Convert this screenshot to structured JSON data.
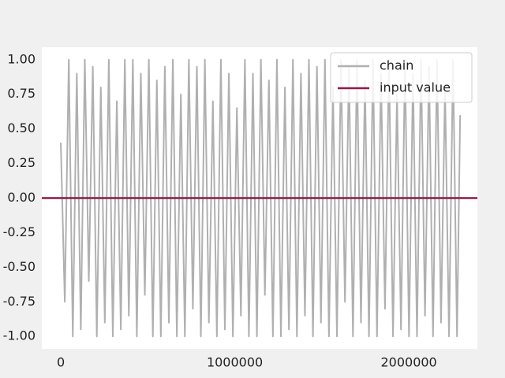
{
  "chart_data": {
    "type": "line",
    "x": [
      0,
      23000,
      46000,
      69000,
      92000,
      115000,
      138000,
      161000,
      184000,
      207000,
      230000,
      253000,
      276000,
      299000,
      322000,
      345000,
      368000,
      391000,
      414000,
      437000,
      460000,
      483000,
      506000,
      529000,
      552000,
      575000,
      598000,
      621000,
      644000,
      667000,
      690000,
      713000,
      736000,
      759000,
      782000,
      805000,
      828000,
      851000,
      874000,
      897000,
      920000,
      943000,
      966000,
      989000,
      1012000,
      1035000,
      1058000,
      1081000,
      1104000,
      1127000,
      1150000,
      1173000,
      1196000,
      1219000,
      1242000,
      1265000,
      1288000,
      1311000,
      1334000,
      1357000,
      1380000,
      1403000,
      1426000,
      1449000,
      1472000,
      1495000,
      1518000,
      1541000,
      1564000,
      1587000,
      1610000,
      1633000,
      1656000,
      1679000,
      1702000,
      1725000,
      1748000,
      1771000,
      1794000,
      1817000,
      1840000,
      1863000,
      1886000,
      1909000,
      1932000,
      1955000,
      1978000,
      2001000,
      2024000,
      2047000,
      2070000,
      2093000,
      2116000,
      2139000,
      2162000,
      2185000,
      2208000,
      2231000,
      2254000,
      2277000,
      2295000
    ],
    "series": [
      {
        "name": "chain",
        "color": "#b0b0b0",
        "values": [
          0.4,
          -0.75,
          1.0,
          -1.0,
          0.9,
          -0.95,
          1.0,
          -0.6,
          0.95,
          -1.0,
          0.8,
          -0.9,
          1.0,
          -1.0,
          0.7,
          -0.95,
          1.0,
          -0.85,
          1.0,
          -1.0,
          0.9,
          -0.7,
          1.0,
          -1.0,
          0.85,
          -1.0,
          0.95,
          -0.9,
          1.0,
          -1.0,
          0.75,
          -1.0,
          1.0,
          -0.8,
          0.95,
          -1.0,
          1.0,
          -0.9,
          0.7,
          -1.0,
          1.0,
          -0.95,
          0.9,
          -1.0,
          0.65,
          -0.85,
          1.0,
          -1.0,
          0.9,
          -1.0,
          1.0,
          -0.7,
          0.85,
          -1.0,
          1.0,
          -1.0,
          0.8,
          -0.95,
          1.0,
          -1.0,
          0.9,
          -0.85,
          1.0,
          -1.0,
          0.95,
          -0.9,
          1.0,
          -1.0,
          0.8,
          -1.0,
          1.0,
          -0.75,
          0.95,
          -1.0,
          1.0,
          -0.9,
          0.85,
          -1.0,
          1.0,
          -1.0,
          0.9,
          -0.8,
          1.0,
          -1.0,
          0.75,
          -0.95,
          1.0,
          -1.0,
          0.9,
          -1.0,
          1.0,
          -0.85,
          0.95,
          -1.0,
          1.0,
          -0.9,
          0.8,
          -1.0,
          1.0,
          -1.0,
          0.6
        ]
      }
    ],
    "input_value": {
      "name": "input value",
      "color": "#8f1a49",
      "value": 0
    },
    "xlim": [
      -109000,
      2394000
    ],
    "xticks": [
      0,
      1000000,
      2000000
    ],
    "ylim": [
      -1.09,
      1.09
    ],
    "yticks": [
      {
        "value": -1,
        "label": "-1.00"
      },
      {
        "value": -0.75,
        "label": "-0.75"
      },
      {
        "value": -0.5,
        "label": "-0.50"
      },
      {
        "value": -0.25,
        "label": "-0.25"
      },
      {
        "value": 0,
        "label": "0.00"
      },
      {
        "value": 0.25,
        "label": "0.25"
      },
      {
        "value": 0.5,
        "label": "0.50"
      },
      {
        "value": 0.75,
        "label": "0.75"
      },
      {
        "value": 1,
        "label": "1.00"
      }
    ],
    "legend": "upper right"
  }
}
